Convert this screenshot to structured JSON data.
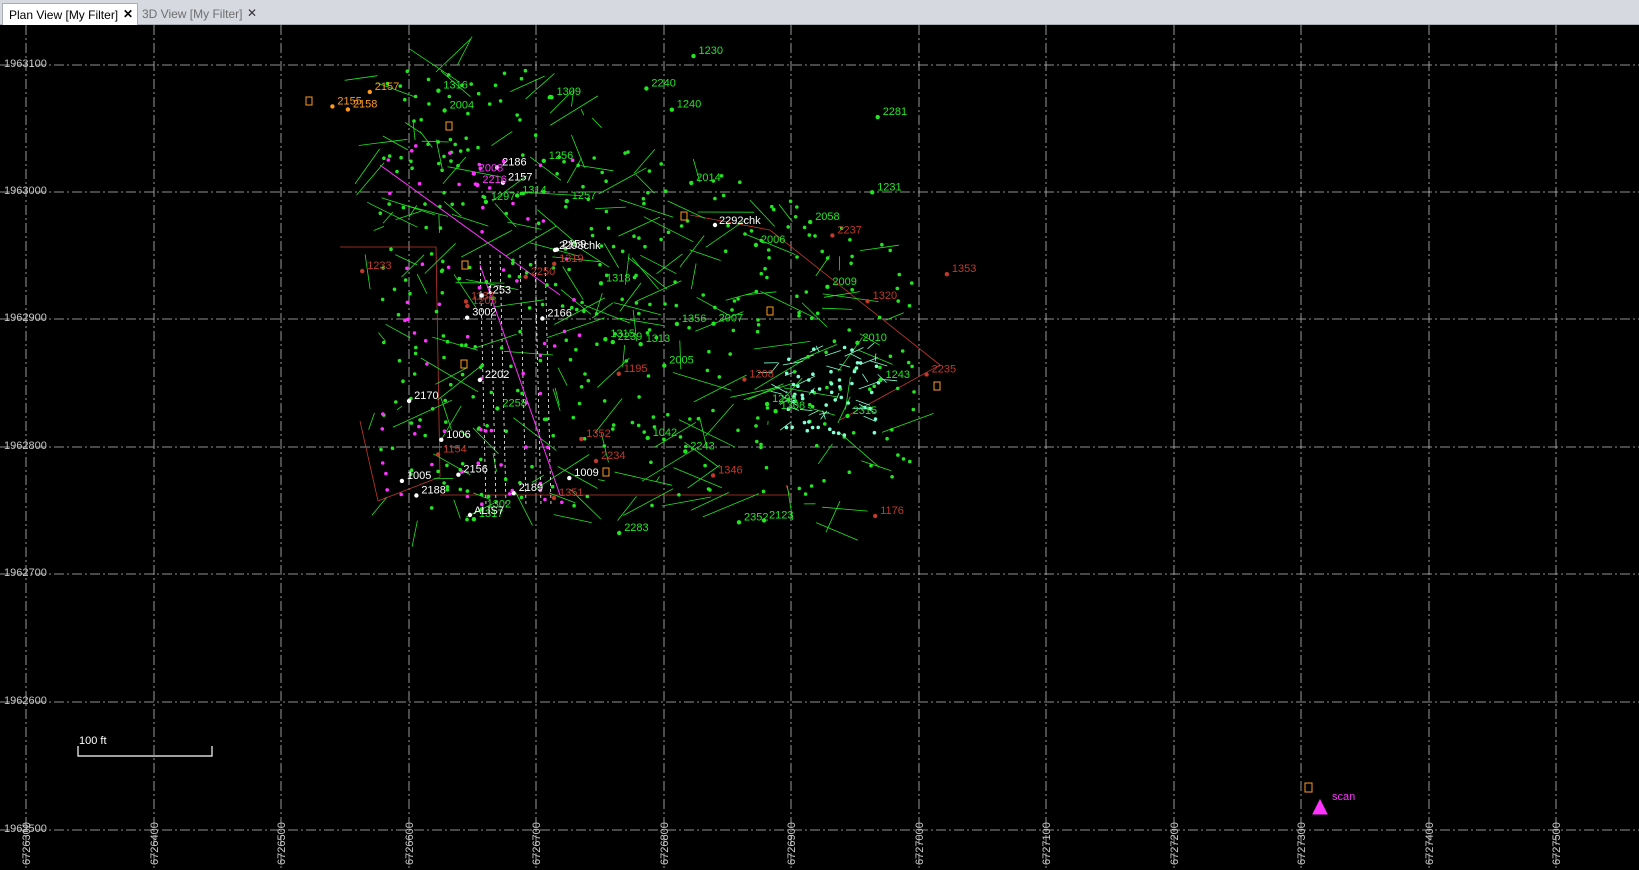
{
  "tabs": [
    {
      "label": "Plan View [My Filter]",
      "active": true
    },
    {
      "label": "3D View [My Filter]",
      "active": false
    }
  ],
  "y_grid_labels": [
    "1963100",
    "1963000",
    "1962900",
    "1962800",
    "1962700",
    "1962600",
    "1962500"
  ],
  "x_grid_labels": [
    "6726300",
    "6726400",
    "6726500",
    "6726600",
    "6726700",
    "6726800",
    "6726900",
    "6727000",
    "6727100",
    "6727200",
    "6727300",
    "6727400",
    "6727500"
  ],
  "scale_bar": {
    "label": "100 ft"
  },
  "colors": {
    "background": "#000000",
    "grid": "#bfbfbf",
    "green_points": "#22e622",
    "red_points": "#c0392b",
    "magenta_points": "#ff33ff",
    "orange_points": "#ff9a1f",
    "white_points": "#ffffff",
    "cyan_points": "#7fffd4"
  },
  "points": {
    "green": [
      "2014",
      "2009",
      "2007",
      "2006",
      "2005",
      "2004",
      "2123",
      "2058",
      "1230",
      "1231",
      "1302",
      "1356",
      "1298",
      "1308",
      "1309",
      "1315",
      "1316",
      "1317",
      "1256",
      "1257",
      "1318",
      "2352",
      "2315",
      "2283",
      "2281",
      "2258",
      "2243",
      "2240",
      "2239",
      "1297",
      "1240",
      "1243",
      "1042",
      "1313",
      "1314",
      "2010"
    ],
    "red": [
      "1346",
      "2234",
      "2237",
      "2250",
      "2235",
      "1195",
      "1176",
      "1154",
      "1203",
      "1208",
      "1351",
      "1352",
      "1353",
      "1320",
      "1319",
      "1188",
      "1233"
    ],
    "white": [
      "2156",
      "2157",
      "2188",
      "2159",
      "2186",
      "2189",
      "2170",
      "3002",
      "2166",
      "1253",
      "2202",
      "1009",
      "1006",
      "1005"
    ],
    "orange": [
      "2155",
      "2157",
      "2158"
    ],
    "magenta": [
      "2008",
      "2216"
    ],
    "labeled": [
      {
        "text": "2292chk",
        "color": "white"
      },
      {
        "text": "2293chk",
        "color": "white"
      },
      {
        "text": "ALIS7",
        "color": "white"
      }
    ],
    "control": {
      "text": "scan",
      "color": "magenta"
    }
  }
}
